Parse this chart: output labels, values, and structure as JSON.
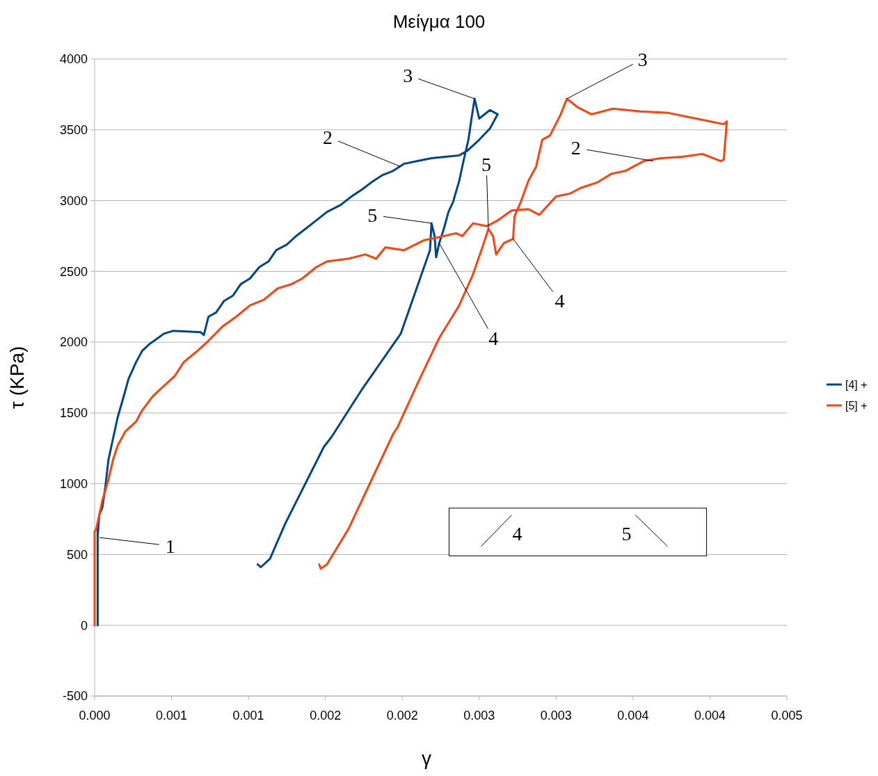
{
  "chart_data": {
    "type": "line",
    "title": "Μείγμα 100",
    "xlabel": "γ",
    "ylabel": "τ (KPa)",
    "xlim": [
      0,
      0.0045
    ],
    "xticks": [
      {
        "value": 0,
        "label": "0.000"
      },
      {
        "value": 0.0005,
        "label": "0.001"
      },
      {
        "value": 0.001,
        "label": "0.001"
      },
      {
        "value": 0.0015,
        "label": "0.002"
      },
      {
        "value": 0.002,
        "label": "0.002"
      },
      {
        "value": 0.0025,
        "label": "0.003"
      },
      {
        "value": 0.003,
        "label": "0.003"
      },
      {
        "value": 0.0035,
        "label": "0.004"
      },
      {
        "value": 0.004,
        "label": "0.004"
      },
      {
        "value": 0.0045,
        "label": "0.005"
      }
    ],
    "ylim": [
      -500,
      4000
    ],
    "yticks": [
      -500,
      0,
      500,
      1000,
      1500,
      2000,
      2500,
      3000,
      3500,
      4000
    ],
    "grid": "y",
    "legend": "right",
    "marker": "none",
    "line_style": "solid",
    "series": [
      {
        "name": "[4] +",
        "color": "#004586",
        "x": [
          2e-05,
          2e-05,
          2e-05,
          2e-05,
          3e-05,
          5e-05,
          7e-05,
          9e-05,
          0.00012,
          0.00015,
          0.00019,
          0.00022,
          0.00027,
          0.00031,
          0.00036,
          0.0004,
          0.00045,
          0.00051,
          0.00069,
          0.00071,
          0.00074,
          0.00079,
          0.00084,
          0.0009,
          0.00095,
          0.00101,
          0.00107,
          0.00113,
          0.00118,
          0.00125,
          0.00131,
          0.00137,
          0.00144,
          0.00151,
          0.0016,
          0.00167,
          0.00174,
          0.0018,
          0.00187,
          0.00194,
          0.00201,
          0.0021,
          0.00219,
          0.00228,
          0.00237,
          0.00242,
          0.0025,
          0.00257,
          0.00262,
          0.00257,
          0.0025,
          0.00247,
          0.00245,
          0.00243,
          0.0024,
          0.00237,
          0.00233,
          0.0023,
          0.00227,
          0.00224,
          0.00222,
          0.00221,
          0.00219,
          0.00218,
          0.00199,
          0.00174,
          0.00154,
          0.00149,
          0.00124,
          0.00114,
          0.00108,
          0.00106
        ],
        "values": [
          0,
          140,
          680,
          630,
          780,
          830,
          980,
          1170,
          1320,
          1470,
          1620,
          1740,
          1860,
          1940,
          1990,
          2020,
          2060,
          2080,
          2070,
          2050,
          2180,
          2210,
          2290,
          2330,
          2410,
          2450,
          2530,
          2570,
          2650,
          2690,
          2750,
          2800,
          2860,
          2920,
          2970,
          3030,
          3080,
          3130,
          3180,
          3210,
          3260,
          3280,
          3300,
          3310,
          3320,
          3350,
          3430,
          3510,
          3610,
          3640,
          3580,
          3720,
          3580,
          3430,
          3290,
          3140,
          2990,
          2920,
          2800,
          2700,
          2600,
          2750,
          2840,
          2650,
          2060,
          1670,
          1330,
          1260,
          720,
          470,
          410,
          430
        ]
      },
      {
        "name": "[5] +",
        "color": "#ff420e",
        "x": [
          0,
          0,
          1e-05,
          3e-05,
          5e-05,
          9e-05,
          0.00012,
          0.00015,
          0.0002,
          0.00027,
          0.00031,
          0.00038,
          0.00045,
          0.00052,
          0.00058,
          0.00067,
          0.00074,
          0.00083,
          0.00092,
          0.00101,
          0.0011,
          0.00119,
          0.00128,
          0.00135,
          0.00144,
          0.00151,
          0.00165,
          0.00176,
          0.00183,
          0.00189,
          0.00201,
          0.00214,
          0.00223,
          0.00235,
          0.00239,
          0.00246,
          0.00255,
          0.00262,
          0.00271,
          0.00282,
          0.00289,
          0.003,
          0.00309,
          0.00316,
          0.00327,
          0.00336,
          0.00345,
          0.00357,
          0.00368,
          0.00382,
          0.00395,
          0.00407,
          0.00409,
          0.00411,
          0.00409,
          0.00391,
          0.00373,
          0.00355,
          0.00337,
          0.00323,
          0.00314,
          0.00307,
          0.00303,
          0.00296,
          0.00291,
          0.00287,
          0.00282,
          0.00277,
          0.00273,
          0.00272,
          0.00266,
          0.00261,
          0.00259,
          0.00256,
          0.00253,
          0.00246,
          0.00237,
          0.00224,
          0.0021,
          0.00197,
          0.00194,
          0.00178,
          0.00165,
          0.00151,
          0.00147,
          0.00146
        ],
        "values": [
          0,
          660,
          680,
          780,
          880,
          1030,
          1170,
          1270,
          1370,
          1440,
          1520,
          1620,
          1690,
          1760,
          1860,
          1940,
          2010,
          2110,
          2180,
          2260,
          2300,
          2380,
          2410,
          2450,
          2530,
          2570,
          2590,
          2620,
          2590,
          2670,
          2650,
          2720,
          2740,
          2770,
          2750,
          2840,
          2820,
          2860,
          2930,
          2940,
          2900,
          3030,
          3050,
          3090,
          3130,
          3190,
          3210,
          3280,
          3300,
          3310,
          3330,
          3280,
          3290,
          3560,
          3540,
          3580,
          3620,
          3630,
          3650,
          3610,
          3660,
          3720,
          3610,
          3460,
          3430,
          3240,
          3140,
          2990,
          2890,
          2730,
          2700,
          2620,
          2750,
          2800,
          2700,
          2480,
          2260,
          2030,
          1710,
          1400,
          1350,
          980,
          680,
          430,
          400,
          430
        ]
      }
    ],
    "annotations": [
      {
        "text": "1",
        "x": 3e-05,
        "y": 620
      },
      {
        "text": "2",
        "x": 0.00199,
        "y": 3240
      },
      {
        "text": "3",
        "x": 0.00247,
        "y": 3720
      },
      {
        "text": "5",
        "x": 0.00219,
        "y": 2840
      },
      {
        "text": "4",
        "x": 0.00224,
        "y": 2700
      },
      {
        "text": "3",
        "x": 0.00307,
        "y": 3720
      },
      {
        "text": "2",
        "x": 0.00363,
        "y": 3280
      },
      {
        "text": "5",
        "x": 0.00256,
        "y": 2800
      },
      {
        "text": "4",
        "x": 0.00272,
        "y": 2730
      },
      "4",
      "5"
    ]
  }
}
